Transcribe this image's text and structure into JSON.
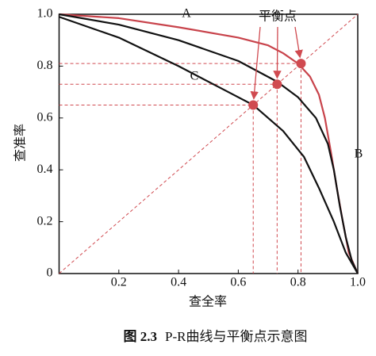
{
  "chart_data": {
    "type": "line",
    "x_label": "查全率",
    "y_label": "查准率",
    "xlim": [
      0,
      1
    ],
    "ylim": [
      0,
      1
    ],
    "xticks": [
      0.2,
      0.4,
      0.6,
      0.8,
      {
        "value": 1,
        "label": "1.0"
      }
    ],
    "yticks": [
      0,
      0.2,
      0.4,
      0.6,
      0.8,
      {
        "value": 1,
        "label": "1.0"
      }
    ],
    "series": [
      {
        "label": "A",
        "color": "#c8434b",
        "x": [
          0,
          0.2,
          0.4,
          0.6,
          0.7,
          0.75,
          0.8,
          0.84,
          0.87,
          0.89,
          0.91,
          0.93,
          0.95,
          0.97,
          1.0
        ],
        "values": [
          1.0,
          0.985,
          0.95,
          0.91,
          0.88,
          0.85,
          0.81,
          0.76,
          0.69,
          0.6,
          0.47,
          0.33,
          0.2,
          0.08,
          0
        ]
      },
      {
        "label": "B",
        "color": "#111111",
        "x": [
          0,
          0.2,
          0.4,
          0.6,
          0.73,
          0.8,
          0.86,
          0.9,
          0.92,
          0.94,
          0.96,
          0.98,
          1.0
        ],
        "values": [
          1.0,
          0.96,
          0.9,
          0.82,
          0.74,
          0.68,
          0.6,
          0.5,
          0.4,
          0.26,
          0.14,
          0.05,
          0
        ]
      },
      {
        "label": "C",
        "color": "#111111",
        "x": [
          0,
          0.2,
          0.4,
          0.55,
          0.65,
          0.75,
          0.82,
          0.87,
          0.92,
          0.96,
          1.0
        ],
        "values": [
          0.99,
          0.91,
          0.8,
          0.71,
          0.65,
          0.55,
          0.45,
          0.33,
          0.2,
          0.08,
          0
        ]
      }
    ],
    "break_even": {
      "label": "平衡点",
      "color": "#d04a50",
      "x": [
        0.65,
        0.73,
        0.81
      ],
      "values": [
        0.65,
        0.73,
        0.81
      ]
    },
    "caption": {
      "figure": "图 2.3",
      "text": "P-R曲线与平衡点示意图"
    }
  }
}
